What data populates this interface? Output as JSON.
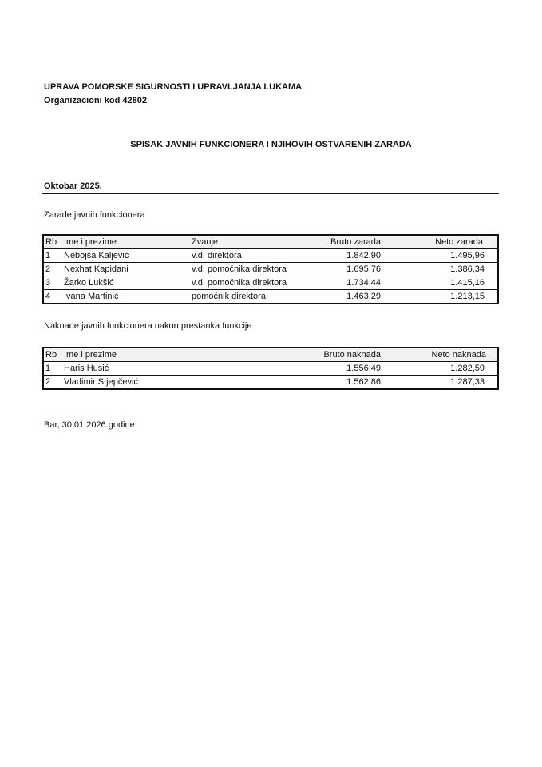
{
  "header": {
    "organization": "UPRAVA POMORSKE SIGURNOSTI I UPRAVLJANJA LUKAMA",
    "org_code": "Organizacioni kod 42802"
  },
  "title": "SPISAK JAVNIH FUNKCIONERA I NJIHOVIH OSTVARENIH ZARADA",
  "period": "Oktobar 2025.",
  "salaries": {
    "caption": "Zarade javnih funkcionera",
    "columns": [
      "Rb",
      "Ime i prezime",
      "Zvanje",
      "Bruto zarada",
      "Neto zarada"
    ],
    "rows": [
      [
        "1",
        "Nebojša Kaljević",
        "v.d. direktora",
        "1.842,90",
        "1.495,96"
      ],
      [
        "2",
        "Nexhat Kapidani",
        "v.d. pomoćnika direktora",
        "1.695,76",
        "1.386,34"
      ],
      [
        "3",
        "Žarko Lukšić",
        "v.d. pomoćnika direktora",
        "1.734,44",
        "1.415,16"
      ],
      [
        "4",
        "Ivana Martinić",
        "pomoćnik direktora",
        "1.463,29",
        "1.213,15"
      ]
    ]
  },
  "compensations": {
    "caption": "Naknade javnih funkcionera nakon prestanka funkcije",
    "columns": [
      "Rb",
      "Ime i prezime",
      "Bruto naknada",
      "Neto naknada"
    ],
    "rows": [
      [
        "1",
        "Haris Husić",
        "1.556,49",
        "1.282,59"
      ],
      [
        "2",
        "Vladimir Stjepčević",
        "1.562,86",
        "1.287,33"
      ]
    ]
  },
  "footer": "Bar, 30.01.2026.godine"
}
